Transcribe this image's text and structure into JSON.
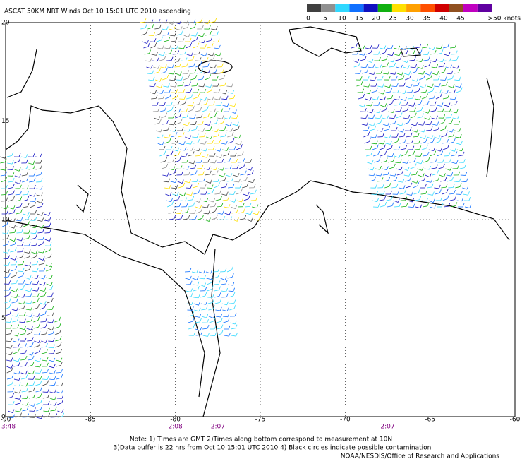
{
  "header": {
    "title": "ASCAT 50KM NRT Winds Oct 10 15:01 UTC 2010 ascending"
  },
  "legend": {
    "labels": [
      "0",
      "5",
      "10",
      "15",
      "20",
      "25",
      "30",
      "35",
      "40",
      "45",
      ">50 knots"
    ],
    "colors": [
      "#404040",
      "#909090",
      "#30d8ff",
      "#1070ff",
      "#1010c0",
      "#10b010",
      "#ffe000",
      "#ffa000",
      "#ff5000",
      "#d00000",
      "#905020",
      "#c000c0",
      "#6000a0"
    ]
  },
  "map": {
    "lon_labels": [
      "-90",
      "-85",
      "-80",
      "-75",
      "-70",
      "-65",
      "-60"
    ],
    "lat_labels": [
      "20",
      "15",
      "10",
      "5",
      "0"
    ],
    "times": [
      {
        "label": "3:48",
        "lon": -90
      },
      {
        "label": "2:08",
        "lon": -80
      },
      {
        "label": "2:07",
        "lon": -77.5
      },
      {
        "label": "2:07",
        "lon": -67.5
      }
    ]
  },
  "notes": [
    "Note: 1) Times are GMT 2)Times along bottom correspond to measurement at 10N",
    "3)Data buffer is 22 hrs from Oct 10 15:01 UTC 2010 4) Black circles indicate possible contamination",
    "NOAA/NESDIS/Office of Research and Applications"
  ]
}
